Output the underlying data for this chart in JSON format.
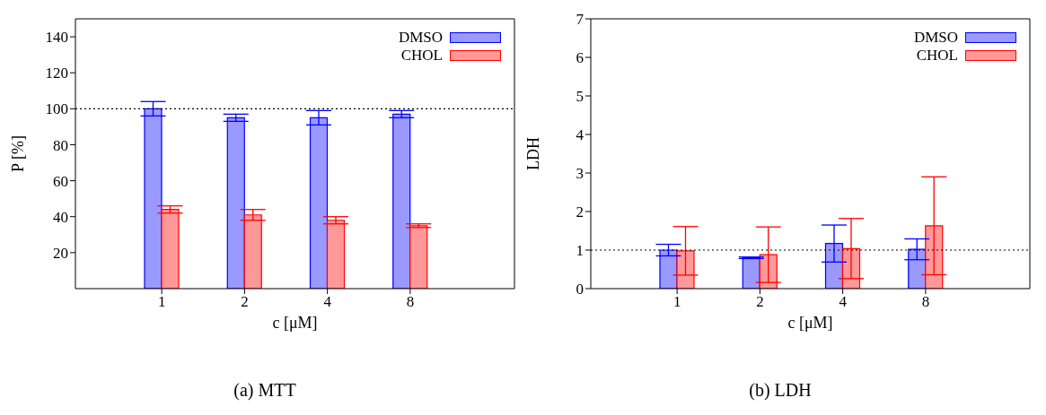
{
  "chart_data": [
    {
      "type": "bar",
      "title": "(a) MTT",
      "xlabel": "c [μM]",
      "ylabel": "P [%]",
      "categories": [
        "1",
        "2",
        "4",
        "8"
      ],
      "series": [
        {
          "name": "DMSO",
          "color": "#9999ff",
          "values": [
            100,
            95,
            95,
            97
          ],
          "errors": [
            4,
            2,
            4,
            2
          ]
        },
        {
          "name": "CHOL",
          "color": "#ff9999",
          "values": [
            44,
            41,
            38,
            35
          ],
          "errors": [
            2,
            3,
            2,
            1
          ]
        }
      ],
      "ylim": [
        0,
        150
      ],
      "yticks": [
        20,
        40,
        60,
        80,
        100,
        120,
        140
      ],
      "ref_lines": [
        {
          "axis": "y",
          "value": 100,
          "color": "#000000",
          "line_style": "dotted"
        }
      ],
      "legend": "top right",
      "grid": false
    },
    {
      "type": "bar",
      "title": "(b) LDH",
      "xlabel": "c [μM]",
      "ylabel": "LDH",
      "categories": [
        "1",
        "2",
        "4",
        "8"
      ],
      "series": [
        {
          "name": "DMSO",
          "color": "#9999ff",
          "values": [
            1.0,
            0.8,
            1.17,
            1.02
          ],
          "errors": [
            0.15,
            0.02,
            0.48,
            0.27
          ]
        },
        {
          "name": "CHOL",
          "color": "#ff9999",
          "values": [
            0.98,
            0.88,
            1.04,
            1.63
          ],
          "errors": [
            0.63,
            0.72,
            0.78,
            1.27
          ]
        }
      ],
      "ylim": [
        0,
        7
      ],
      "yticks": [
        0,
        1,
        2,
        3,
        4,
        5,
        6,
        7
      ],
      "ref_lines": [
        {
          "axis": "y",
          "value": 1,
          "color": "#000000",
          "line_style": "dotted"
        }
      ],
      "legend": "top right",
      "grid": false
    }
  ]
}
